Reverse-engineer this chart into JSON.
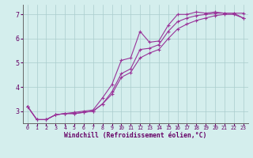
{
  "xlabel": "Windchill (Refroidissement éolien,°C)",
  "background_color": "#d4eeed",
  "line_color": "#993399",
  "grid_color": "#aacccc",
  "xlim": [
    -0.5,
    23.5
  ],
  "ylim": [
    2.5,
    7.4
  ],
  "xtick_fontsize": 4.8,
  "ytick_fontsize": 6.0,
  "xlabel_fontsize": 5.8,
  "line1_x": [
    0,
    1,
    2,
    3,
    4,
    5,
    6,
    7,
    8,
    9,
    10,
    11,
    12,
    13,
    14,
    15,
    16,
    17,
    18,
    19,
    20,
    21,
    22,
    23
  ],
  "line1_y": [
    3.2,
    2.65,
    2.65,
    2.85,
    2.9,
    2.95,
    3.0,
    3.05,
    3.55,
    4.1,
    5.1,
    5.2,
    6.3,
    5.85,
    5.9,
    6.55,
    7.0,
    7.0,
    7.1,
    7.05,
    7.1,
    7.05,
    7.05,
    7.05
  ],
  "line2_x": [
    0,
    1,
    2,
    3,
    4,
    5,
    6,
    7,
    8,
    9,
    10,
    11,
    12,
    13,
    14,
    15,
    16,
    17,
    18,
    19,
    20,
    21,
    22,
    23
  ],
  "line2_y": [
    3.2,
    2.65,
    2.65,
    2.85,
    2.9,
    2.9,
    2.95,
    3.0,
    3.3,
    3.8,
    4.55,
    4.75,
    5.55,
    5.6,
    5.75,
    6.3,
    6.7,
    6.85,
    6.95,
    7.0,
    7.05,
    7.05,
    7.05,
    6.85
  ],
  "line3_x": [
    0,
    1,
    2,
    3,
    4,
    5,
    6,
    7,
    8,
    9,
    10,
    11,
    12,
    13,
    14,
    15,
    16,
    17,
    18,
    19,
    20,
    21,
    22,
    23
  ],
  "line3_y": [
    3.2,
    2.65,
    2.65,
    2.85,
    2.9,
    2.9,
    2.95,
    3.0,
    3.3,
    3.7,
    4.4,
    4.6,
    5.2,
    5.4,
    5.55,
    6.0,
    6.4,
    6.6,
    6.75,
    6.85,
    6.95,
    7.0,
    7.0,
    6.85
  ]
}
